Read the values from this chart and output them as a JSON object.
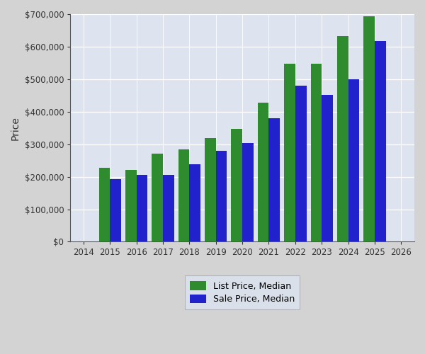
{
  "years": [
    2015,
    2016,
    2017,
    2018,
    2019,
    2020,
    2021,
    2022,
    2023,
    2024,
    2025
  ],
  "list_price_median": [
    228000,
    220000,
    270000,
    283000,
    320000,
    347000,
    428000,
    548000,
    548000,
    632000,
    693000
  ],
  "sale_price_median": [
    193000,
    205000,
    205000,
    238000,
    280000,
    303000,
    380000,
    480000,
    452000,
    500000,
    618000
  ],
  "list_color": "#2e8b2e",
  "sale_color": "#2222cc",
  "background_color": "#dde4f0",
  "outer_background": "#d3d3d3",
  "ylabel": "Price",
  "xlim": [
    2013.5,
    2026.5
  ],
  "ylim": [
    0,
    700000
  ],
  "yticks": [
    0,
    100000,
    200000,
    300000,
    400000,
    500000,
    600000,
    700000
  ],
  "legend_labels": [
    "List Price, Median",
    "Sale Price, Median"
  ],
  "bar_width": 0.42
}
